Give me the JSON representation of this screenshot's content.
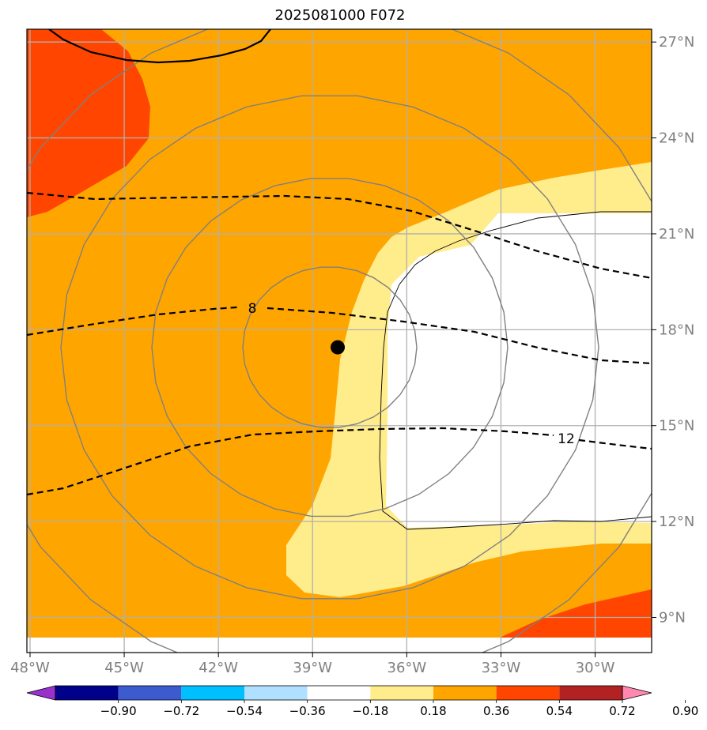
{
  "title": "2025081000 F072",
  "map": {
    "lon_range": [
      -48.1,
      -28.2
    ],
    "lat_range": [
      7.9,
      27.4
    ],
    "grid_lons": [
      -48,
      -45,
      -42,
      -39,
      -36,
      -33,
      -30
    ],
    "grid_lats": [
      9,
      12,
      15,
      18,
      21,
      24,
      27
    ],
    "lon_labels": [
      "48°W",
      "45°W",
      "42°W",
      "39°W",
      "36°W",
      "33°W",
      "30°W"
    ],
    "lat_labels": [
      "9°N",
      "12°N",
      "15°N",
      "18°N",
      "21°N",
      "24°N",
      "27°N"
    ],
    "storm_center": {
      "lon": -38.2,
      "lat": 17.45
    },
    "contour_labels": [
      "8",
      "12"
    ]
  },
  "colorbar": {
    "levels": [
      "−0.90",
      "−0.72",
      "−0.54",
      "−0.36",
      "−0.18",
      "0.18",
      "0.36",
      "0.54",
      "0.72",
      "0.90"
    ],
    "colors": [
      "#9932cc",
      "#00008b",
      "#3b5bcf",
      "#00bfff",
      "#b0e0ff",
      "#ffffff",
      "#ffec8b",
      "#ffa500",
      "#ff4500",
      "#b22222",
      "#ff88b0"
    ]
  },
  "colors": {
    "field_orange": "#ffa500",
    "field_red": "#ff4500",
    "field_yellow": "#ffec8b",
    "field_white": "#ffffff",
    "grid": "#b0b0b0",
    "circles": "#808080"
  }
}
